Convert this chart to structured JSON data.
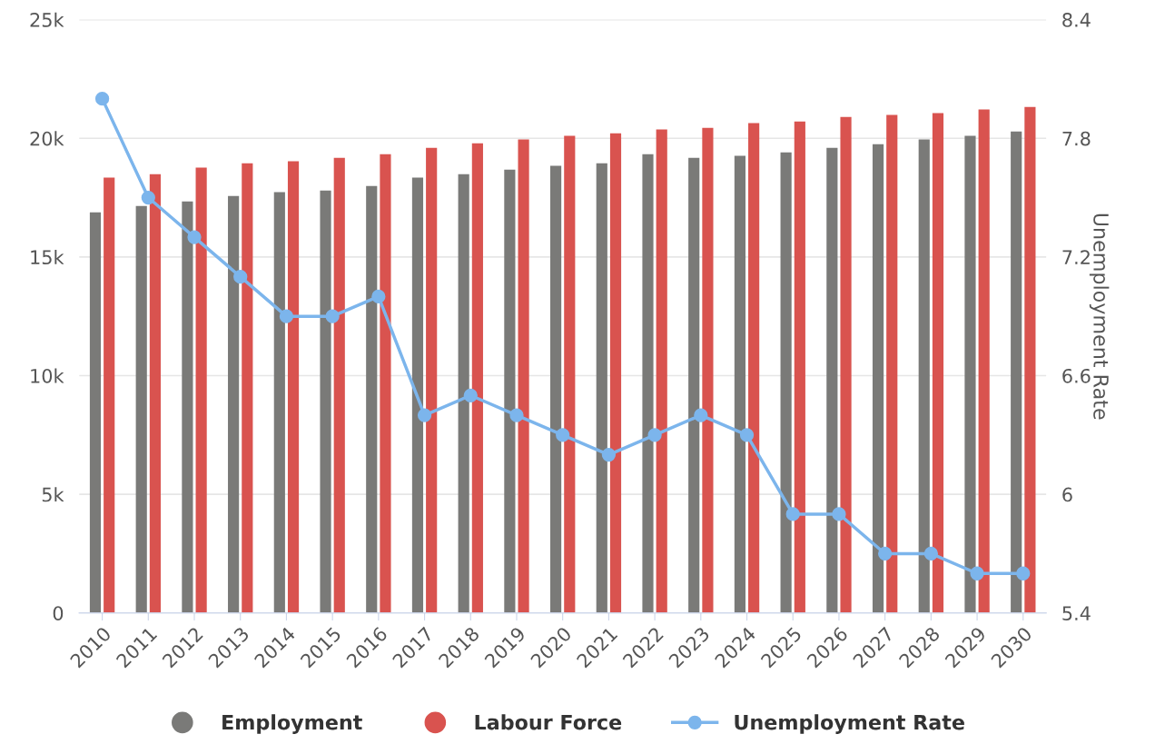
{
  "chart_data": {
    "type": "bar",
    "categories": [
      "2010",
      "2011",
      "2012",
      "2013",
      "2014",
      "2015",
      "2016",
      "2017",
      "2018",
      "2019",
      "2020",
      "2021",
      "2022",
      "2023",
      "2024",
      "2025",
      "2026",
      "2027",
      "2028",
      "2029",
      "2030"
    ],
    "series": [
      {
        "name": "Employment",
        "color": "#7a7a78",
        "values": [
          16.88,
          17.15,
          17.34,
          17.57,
          17.73,
          17.8,
          17.99,
          18.34,
          18.49,
          18.68,
          18.84,
          18.95,
          19.33,
          19.18,
          19.26,
          19.41,
          19.6,
          19.75,
          19.95,
          20.1,
          20.29
        ]
      },
      {
        "name": "Labour Force",
        "color": "#d9534f",
        "values": [
          18.34,
          18.49,
          18.76,
          18.95,
          19.03,
          19.18,
          19.33,
          19.6,
          19.79,
          19.95,
          20.1,
          20.21,
          20.37,
          20.44,
          20.64,
          20.71,
          20.9,
          20.98,
          21.06,
          21.21,
          21.32
        ]
      },
      {
        "name": "Unemployment Rate",
        "type": "line",
        "axis": "y2",
        "color": "#7cb5ec",
        "values": [
          8.0,
          7.5,
          7.3,
          7.1,
          6.9,
          6.9,
          7.0,
          6.4,
          6.5,
          6.4,
          6.3,
          6.2,
          6.3,
          6.4,
          6.3,
          5.9,
          5.9,
          5.7,
          5.7,
          5.6,
          5.6
        ]
      }
    ],
    "y2label": "Unemployment Rate",
    "ylim": [
      0,
      25
    ],
    "yticks": [
      {
        "value": 0,
        "label": "0"
      },
      {
        "value": 5,
        "label": "5k"
      },
      {
        "value": 10,
        "label": "10k"
      },
      {
        "value": 15,
        "label": "15k"
      },
      {
        "value": 20,
        "label": "20k"
      },
      {
        "value": 25,
        "label": "25k"
      }
    ],
    "y2lim": [
      5.4,
      8.4
    ],
    "y2ticks": [
      5.4,
      6,
      6.6,
      7.2,
      7.8,
      8.4
    ],
    "grid": "y",
    "legend": "bottom",
    "marker": "circle"
  }
}
